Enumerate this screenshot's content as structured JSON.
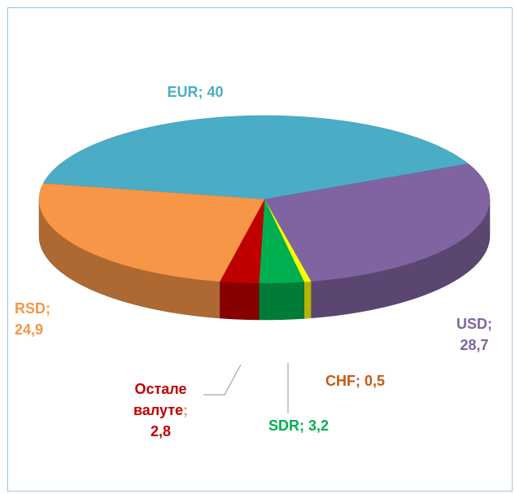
{
  "chart_data": {
    "type": "pie",
    "three_d": true,
    "categories": [
      "EUR",
      "USD",
      "CHF",
      "SDR",
      "Остале валуте",
      "RSD"
    ],
    "values": [
      40,
      28.7,
      0.5,
      3.2,
      2.8,
      24.9
    ],
    "value_labels": [
      "40",
      "28,7",
      "0,5",
      "3,2",
      "2,8",
      "24,9"
    ],
    "label_separator": ";",
    "colors": [
      "#4bacc6",
      "#8064a2",
      "#ffff00",
      "#00b050",
      "#c00000",
      "#f79646"
    ],
    "label_colors": [
      "#4bacc6",
      "#8064a2",
      "#c55a11",
      "#00b050",
      "#c00000",
      "#f79646"
    ]
  }
}
